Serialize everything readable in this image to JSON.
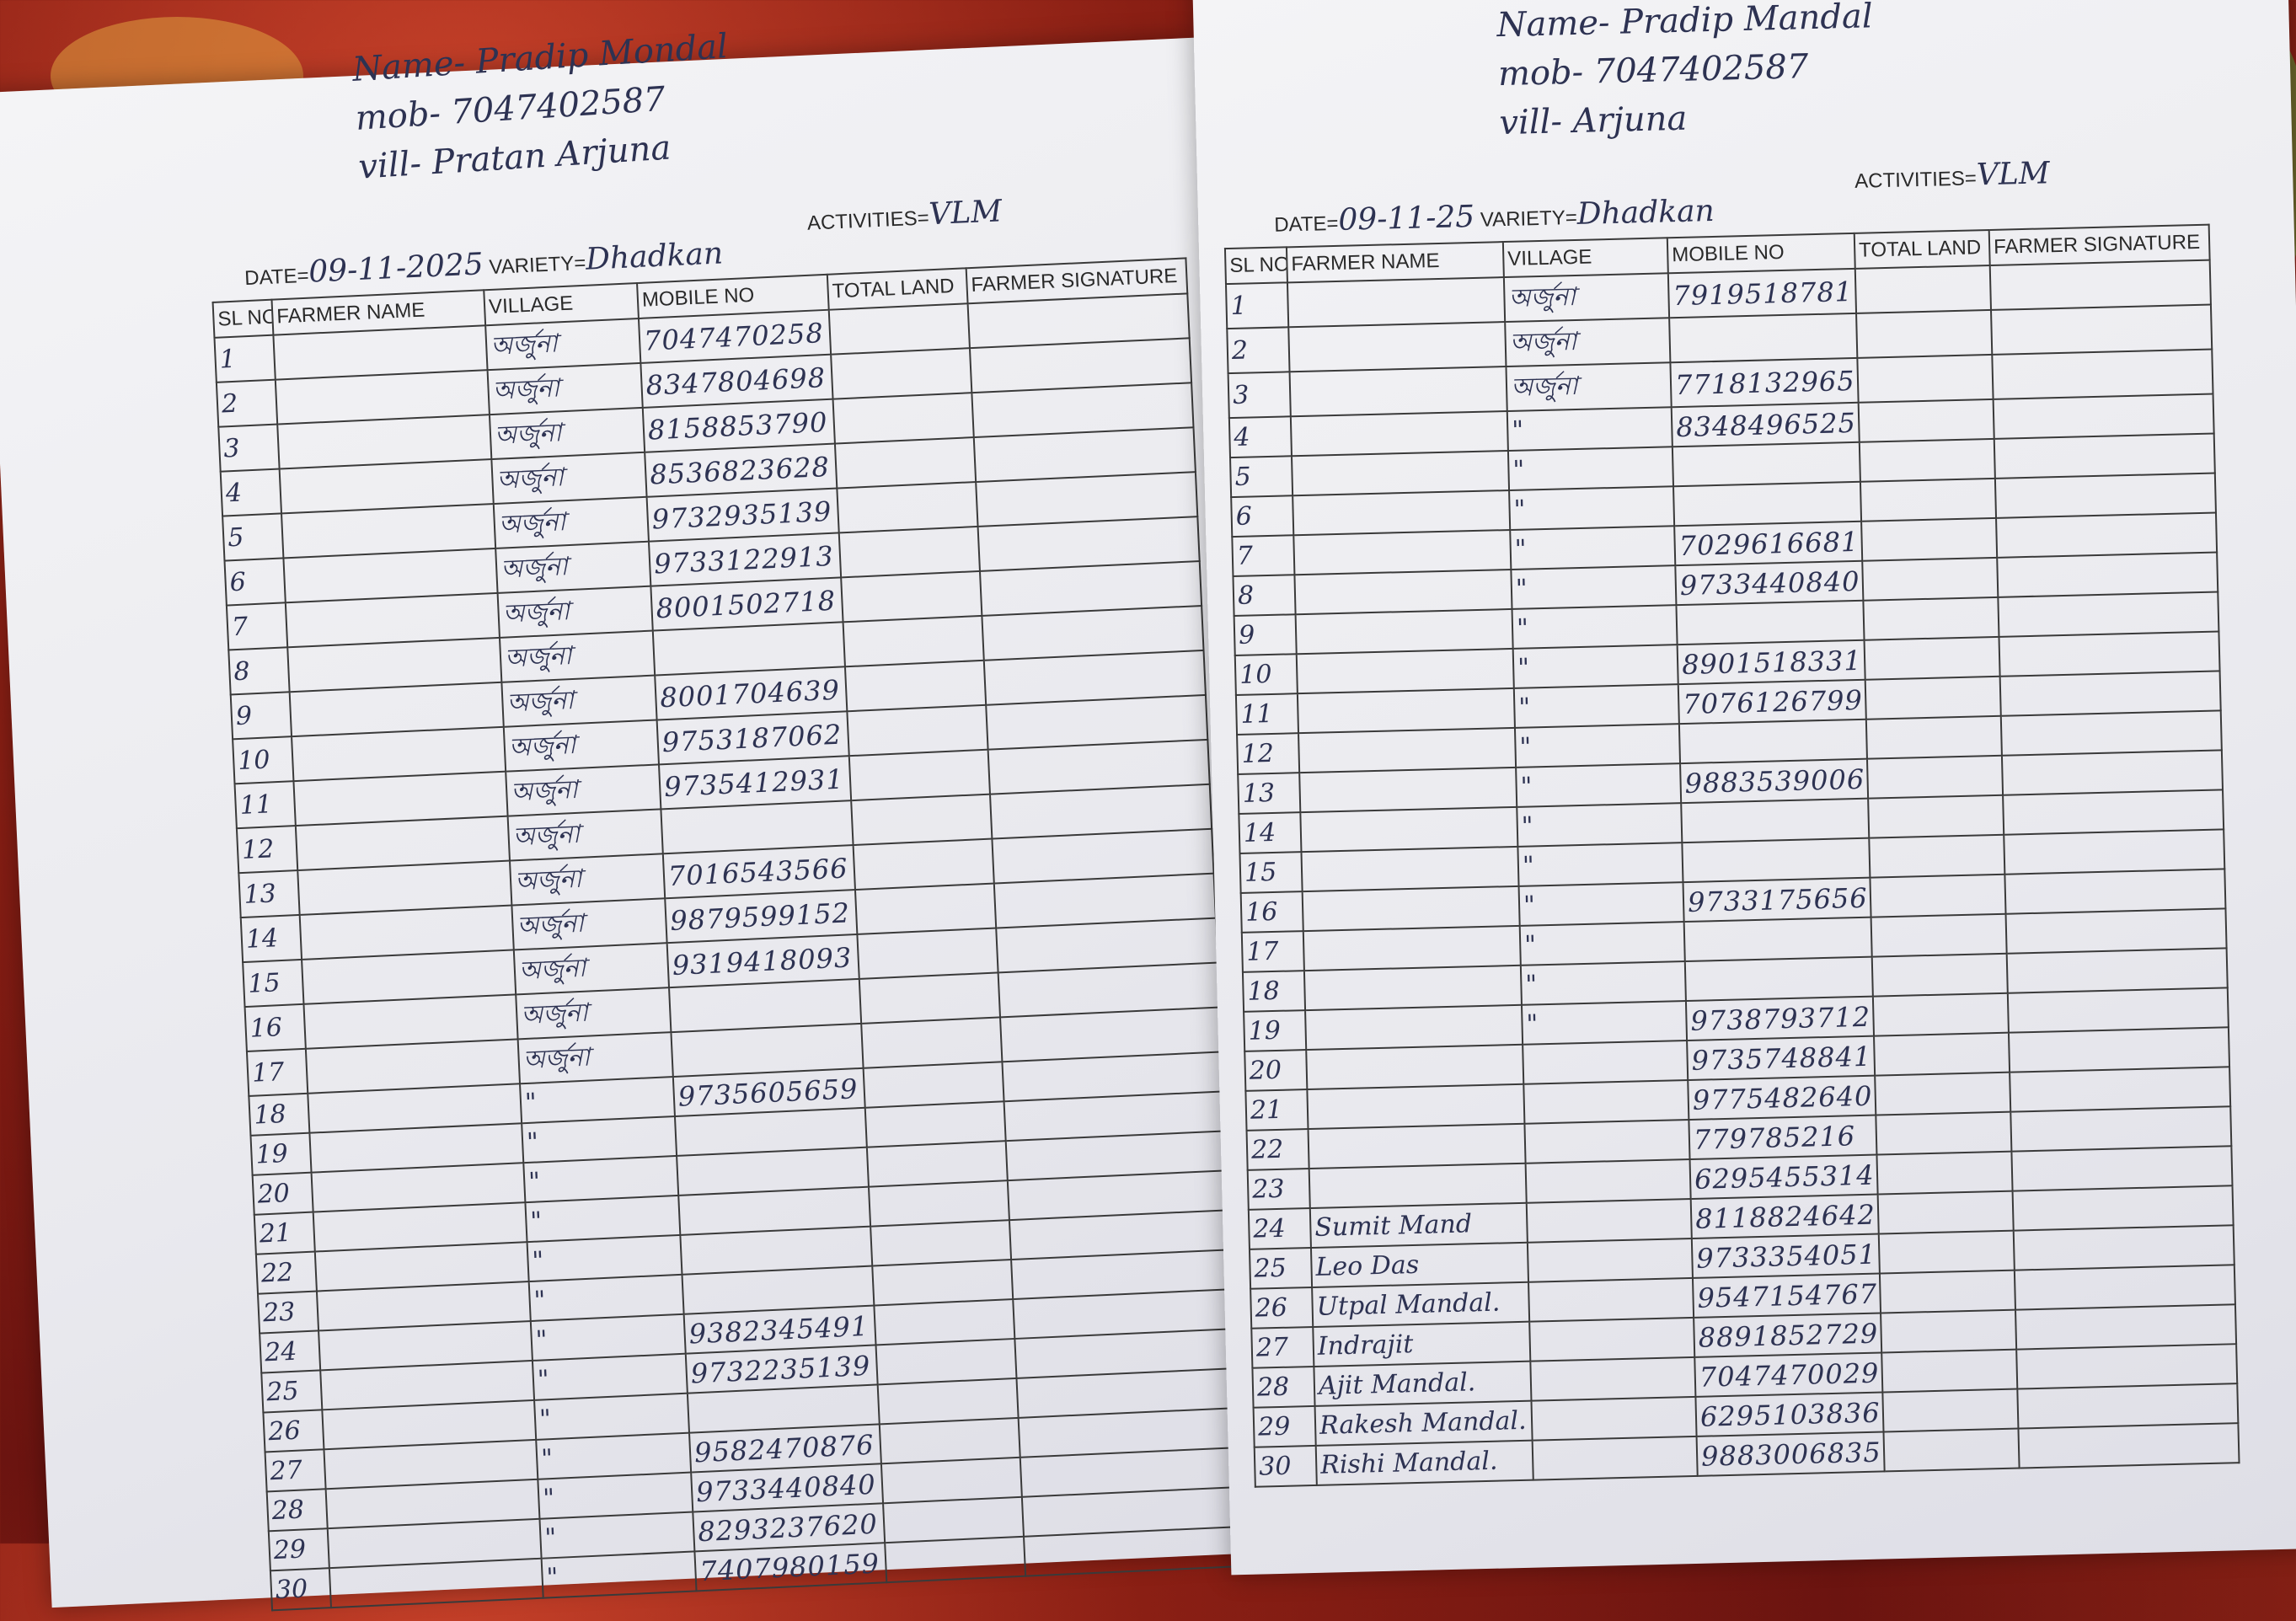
{
  "colors": {
    "ink": "#2d3252",
    "paper": "#ececf0",
    "background": "#8a1f14"
  },
  "left_sheet": {
    "name_line": "Name- Pradip Mondal",
    "mob_line": "mob- 7047402587",
    "vill_line": "vill- Pratan Arjuna",
    "date_label": "DATE=",
    "date_value": "09-11-2025",
    "variety_label": "VARIETY=",
    "variety_value": "Dhadkan",
    "activities_label": "ACTIVITIES=",
    "activities_value": "VLM",
    "columns": [
      "SL NO",
      "FARMER NAME",
      "VILLAGE",
      "MOBILE NO",
      "TOTAL LAND",
      "FARMER SIGNATURE"
    ],
    "rows": [
      {
        "sl": "1",
        "name": "",
        "village": "অর্জুনা",
        "mobile": "7047470258"
      },
      {
        "sl": "2",
        "name": "",
        "village": "অর্জুনা",
        "mobile": "8347804698"
      },
      {
        "sl": "3",
        "name": "",
        "village": "অর্জুনা",
        "mobile": "8158853790"
      },
      {
        "sl": "4",
        "name": "",
        "village": "অর্জুনা",
        "mobile": "8536823628"
      },
      {
        "sl": "5",
        "name": "",
        "village": "অর্জুনা",
        "mobile": "9732935139"
      },
      {
        "sl": "6",
        "name": "",
        "village": "অর্জুনা",
        "mobile": "9733122913"
      },
      {
        "sl": "7",
        "name": "",
        "village": "অর্জুনা",
        "mobile": "8001502718"
      },
      {
        "sl": "8",
        "name": "",
        "village": "অর্জুনা",
        "mobile": ""
      },
      {
        "sl": "9",
        "name": "",
        "village": "অর্জুনা",
        "mobile": "8001704639"
      },
      {
        "sl": "10",
        "name": "",
        "village": "অর্জুনা",
        "mobile": "9753187062"
      },
      {
        "sl": "11",
        "name": "",
        "village": "অর্জুনা",
        "mobile": "9735412931"
      },
      {
        "sl": "12",
        "name": "",
        "village": "অর্জুনা",
        "mobile": ""
      },
      {
        "sl": "13",
        "name": "",
        "village": "অর্জুনা",
        "mobile": "7016543566"
      },
      {
        "sl": "14",
        "name": "",
        "village": "অর্জুনা",
        "mobile": "9879599152"
      },
      {
        "sl": "15",
        "name": "",
        "village": "অর্জুনা",
        "mobile": "9319418093"
      },
      {
        "sl": "16",
        "name": "",
        "village": "অর্জুনা",
        "mobile": ""
      },
      {
        "sl": "17",
        "name": "",
        "village": "অর্জুনা",
        "mobile": ""
      },
      {
        "sl": "18",
        "name": "",
        "village": "\"",
        "mobile": "9735605659"
      },
      {
        "sl": "19",
        "name": "",
        "village": "\"",
        "mobile": ""
      },
      {
        "sl": "20",
        "name": "",
        "village": "\"",
        "mobile": ""
      },
      {
        "sl": "21",
        "name": "",
        "village": "\"",
        "mobile": ""
      },
      {
        "sl": "22",
        "name": "",
        "village": "\"",
        "mobile": ""
      },
      {
        "sl": "23",
        "name": "",
        "village": "\"",
        "mobile": ""
      },
      {
        "sl": "24",
        "name": "",
        "village": "\"",
        "mobile": "9382345491"
      },
      {
        "sl": "25",
        "name": "",
        "village": "\"",
        "mobile": "9732235139"
      },
      {
        "sl": "26",
        "name": "",
        "village": "\"",
        "mobile": ""
      },
      {
        "sl": "27",
        "name": "",
        "village": "\"",
        "mobile": "9582470876"
      },
      {
        "sl": "28",
        "name": "",
        "village": "\"",
        "mobile": "9733440840"
      },
      {
        "sl": "29",
        "name": "",
        "village": "\"",
        "mobile": "8293237620"
      },
      {
        "sl": "30",
        "name": "",
        "village": "\"",
        "mobile": "7407980159"
      }
    ]
  },
  "right_sheet": {
    "name_line": "Name- Pradip Mandal",
    "mob_line": "mob- 7047402587",
    "vill_line": "vill- Arjuna",
    "date_label": "DATE=",
    "date_value": "09-11-25",
    "variety_label": "VARIETY=",
    "variety_value": "Dhadkan",
    "activities_label": "ACTIVITIES=",
    "activities_value": "VLM",
    "columns": [
      "SL NO",
      "FARMER NAME",
      "VILLAGE",
      "MOBILE NO",
      "TOTAL LAND",
      "FARMER SIGNATURE"
    ],
    "rows": [
      {
        "sl": "1",
        "name": "",
        "village": "অর্জুনা",
        "mobile": "7919518781"
      },
      {
        "sl": "2",
        "name": "",
        "village": "অর্জুনা",
        "mobile": ""
      },
      {
        "sl": "3",
        "name": "",
        "village": "অর্জুনা",
        "mobile": "7718132965"
      },
      {
        "sl": "4",
        "name": "",
        "village": "\"",
        "mobile": "8348496525"
      },
      {
        "sl": "5",
        "name": "",
        "village": "\"",
        "mobile": ""
      },
      {
        "sl": "6",
        "name": "",
        "village": "\"",
        "mobile": ""
      },
      {
        "sl": "7",
        "name": "",
        "village": "\"",
        "mobile": "7029616681"
      },
      {
        "sl": "8",
        "name": "",
        "village": "\"",
        "mobile": "9733440840"
      },
      {
        "sl": "9",
        "name": "",
        "village": "\"",
        "mobile": ""
      },
      {
        "sl": "10",
        "name": "",
        "village": "\"",
        "mobile": "8901518331"
      },
      {
        "sl": "11",
        "name": "",
        "village": "\"",
        "mobile": "7076126799"
      },
      {
        "sl": "12",
        "name": "",
        "village": "\"",
        "mobile": ""
      },
      {
        "sl": "13",
        "name": "",
        "village": "\"",
        "mobile": "9883539006"
      },
      {
        "sl": "14",
        "name": "",
        "village": "\"",
        "mobile": ""
      },
      {
        "sl": "15",
        "name": "",
        "village": "\"",
        "mobile": ""
      },
      {
        "sl": "16",
        "name": "",
        "village": "\"",
        "mobile": "9733175656"
      },
      {
        "sl": "17",
        "name": "",
        "village": "\"",
        "mobile": ""
      },
      {
        "sl": "18",
        "name": "",
        "village": "\"",
        "mobile": ""
      },
      {
        "sl": "19",
        "name": "",
        "village": "\"",
        "mobile": "9738793712"
      },
      {
        "sl": "20",
        "name": "",
        "village": "",
        "mobile": "9735748841"
      },
      {
        "sl": "21",
        "name": "",
        "village": "",
        "mobile": "9775482640"
      },
      {
        "sl": "22",
        "name": "",
        "village": "",
        "mobile": "779785216"
      },
      {
        "sl": "23",
        "name": "",
        "village": "",
        "mobile": "6295455314"
      },
      {
        "sl": "24",
        "name": "Sumit Mand",
        "village": "",
        "mobile": "8118824642"
      },
      {
        "sl": "25",
        "name": "Leo Das",
        "village": "",
        "mobile": "9733354051"
      },
      {
        "sl": "26",
        "name": "Utpal Mandal.",
        "village": "",
        "mobile": "9547154767"
      },
      {
        "sl": "27",
        "name": "Indrajit",
        "village": "",
        "mobile": "8891852729"
      },
      {
        "sl": "28",
        "name": "Ajit Mandal.",
        "village": "",
        "mobile": "7047470029"
      },
      {
        "sl": "29",
        "name": "Rakesh Mandal.",
        "village": "",
        "mobile": "6295103836"
      },
      {
        "sl": "30",
        "name": "Rishi Mandal.",
        "village": "",
        "mobile": "9883006835"
      }
    ]
  }
}
